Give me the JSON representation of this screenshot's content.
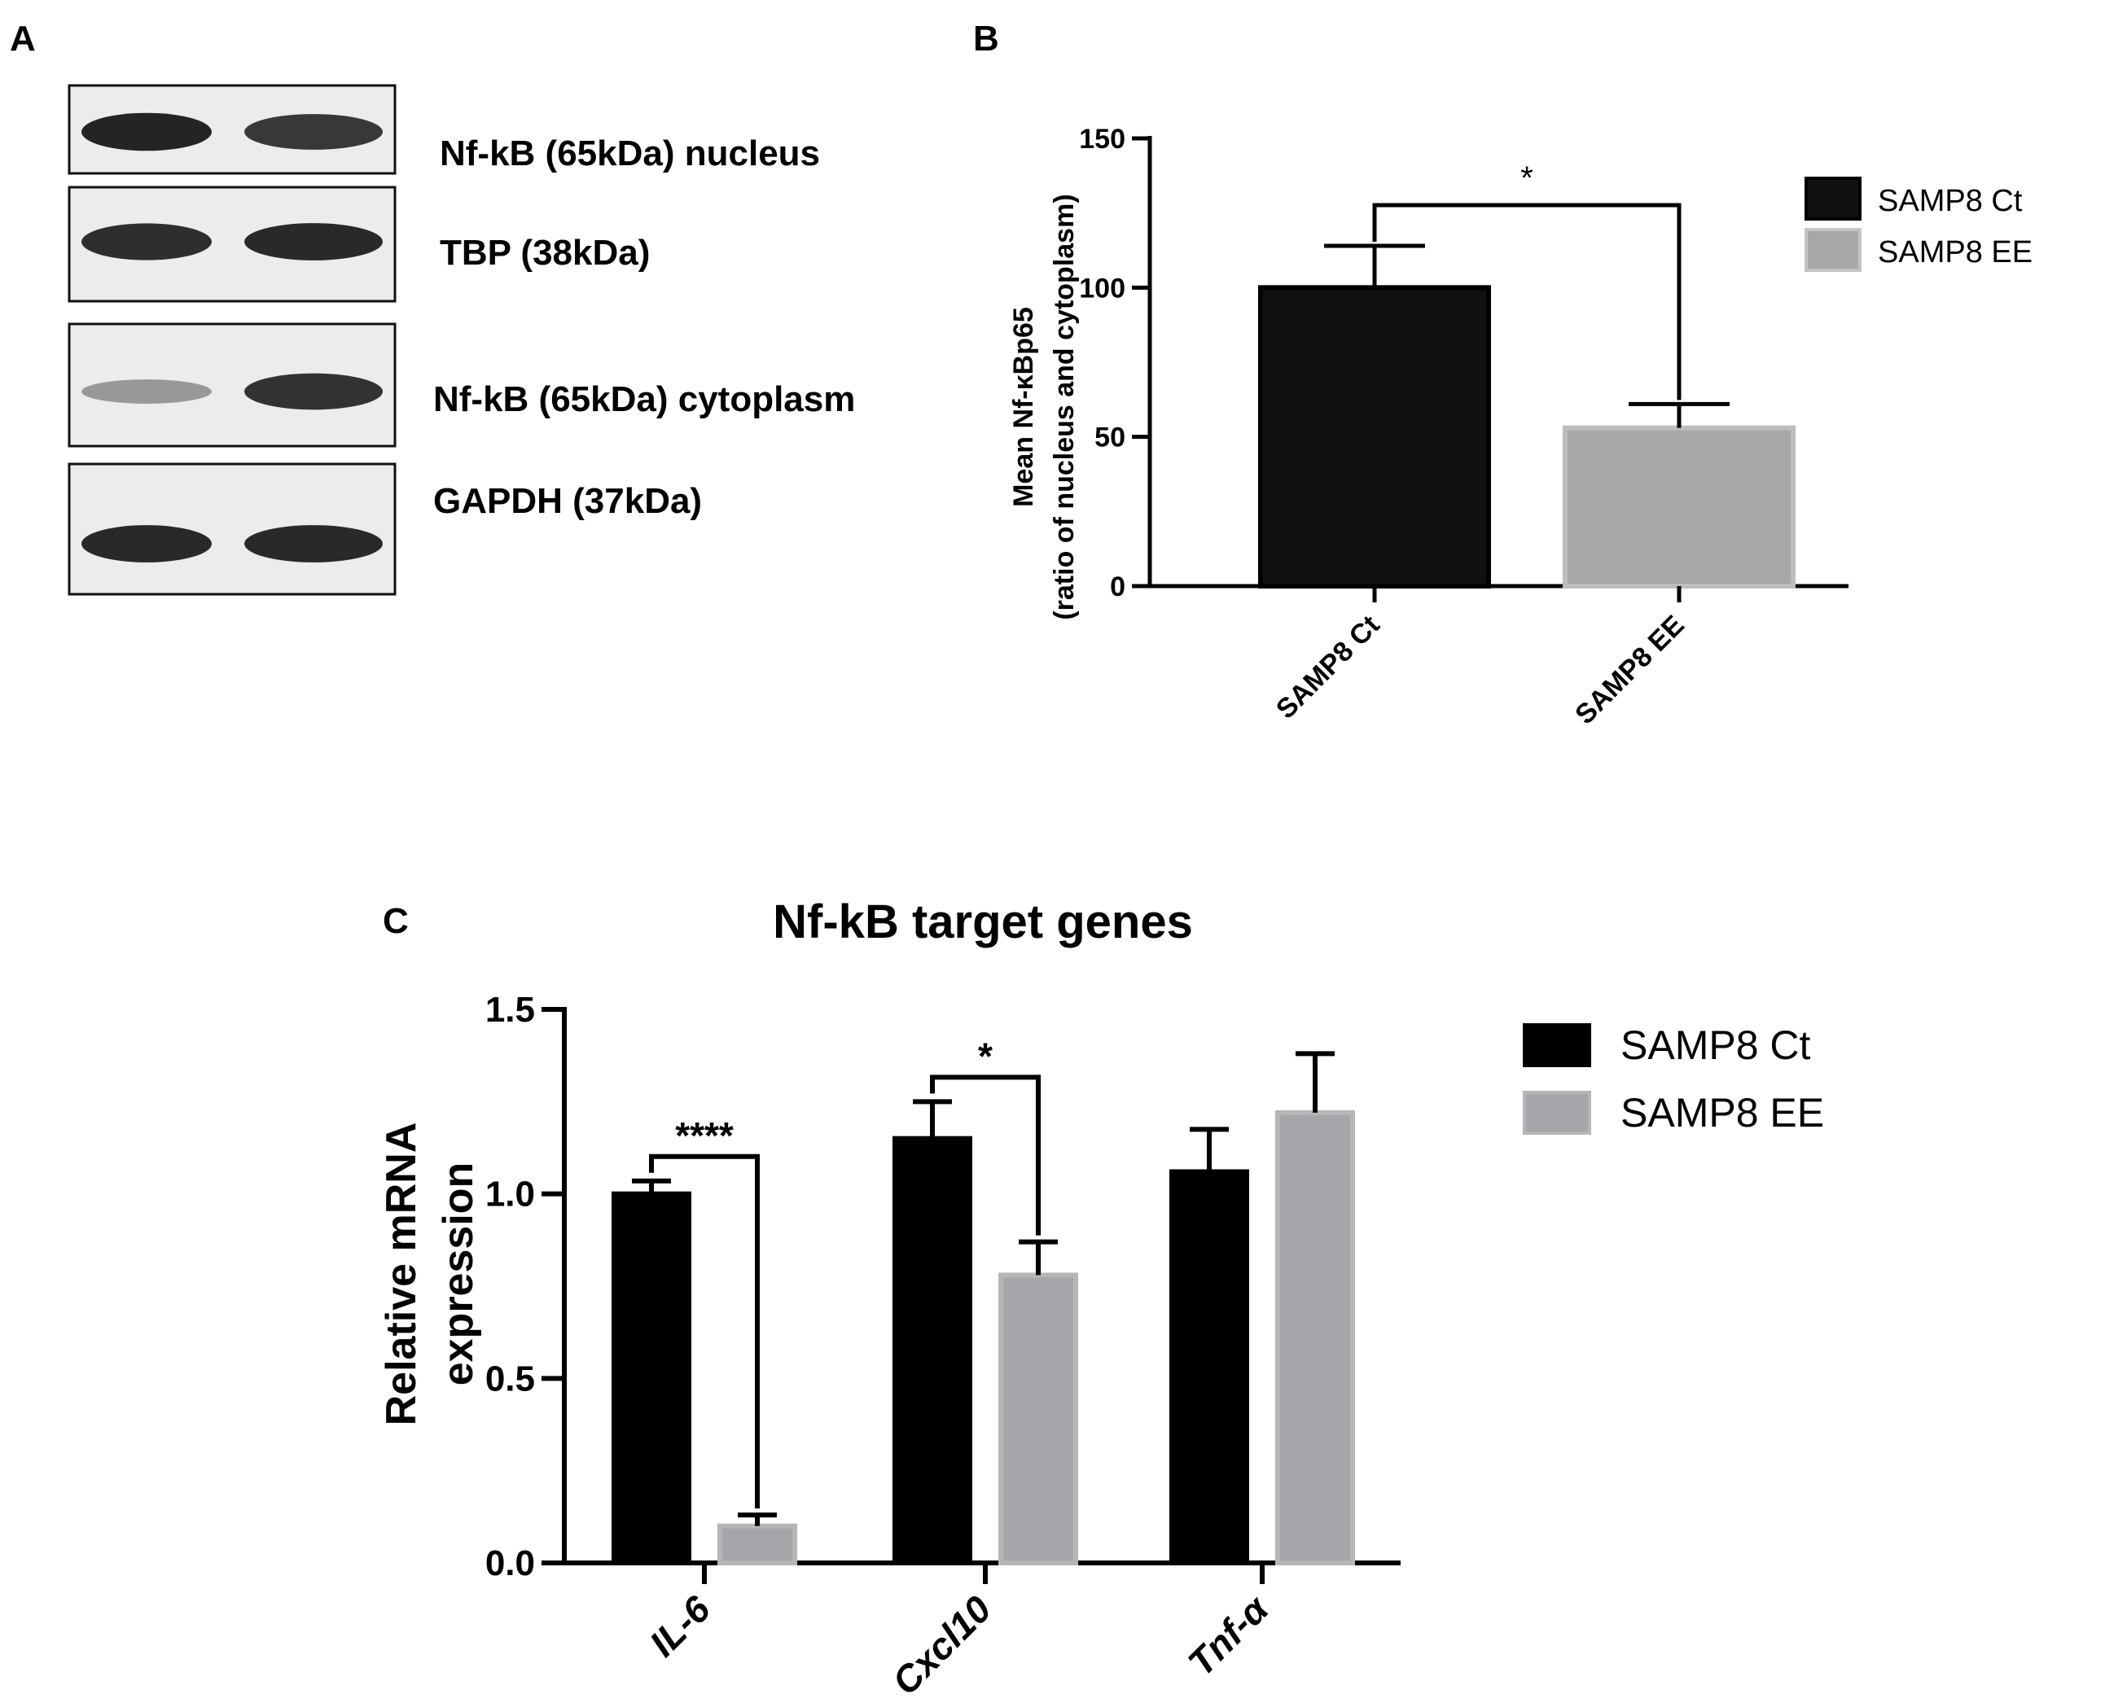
{
  "panel_a": {
    "label": "A",
    "blots": [
      {
        "label": "Nf-kB (65kDa) nucleus",
        "bands": [
          0.95,
          0.85
        ]
      },
      {
        "label": "TBP (38kDa)",
        "bands": [
          0.9,
          0.92
        ]
      },
      {
        "label": "Nf-kB (65kDa) cytoplasm",
        "bands": [
          0.35,
          0.88
        ]
      },
      {
        "label": "GAPDH (37kDa)",
        "bands": [
          0.92,
          0.92
        ]
      }
    ]
  },
  "chart_data": [
    {
      "id": "B",
      "panel_label": "B",
      "type": "bar",
      "title": "",
      "ylabel_line1": "Mean Nf-κBp65",
      "ylabel_line2": "(ratio of nucleus and  cytoplasm)",
      "ylim": [
        0,
        150
      ],
      "yticks": [
        "0",
        "50",
        "100",
        "150"
      ],
      "categories": [
        "SAMP8 Ct",
        "SAMP8 EE"
      ],
      "values": [
        100,
        53
      ],
      "errors": [
        14,
        8
      ],
      "colors": [
        "#111111",
        "#a8a8a8"
      ],
      "significance": [
        {
          "from": 0,
          "to": 1,
          "label": "*"
        }
      ],
      "legend": [
        {
          "label": "SAMP8 Ct",
          "color": "#111111"
        },
        {
          "label": "SAMP8 EE",
          "color": "#a8a8a8"
        }
      ],
      "legend_position": "top-right"
    },
    {
      "id": "C",
      "panel_label": "C",
      "type": "bar",
      "title": "Nf-kB target genes",
      "ylabel_line1": "Relative mRNA",
      "ylabel_line2": "expression",
      "ylim": [
        0,
        1.5
      ],
      "yticks": [
        "0.0",
        "0.5",
        "1.0",
        "1.5"
      ],
      "categories": [
        "IL-6",
        "Cxcl10",
        "Tnf-α"
      ],
      "series": [
        {
          "name": "SAMP8 Ct",
          "color": "#000000",
          "values": [
            1.0,
            1.15,
            1.06
          ],
          "errors": [
            0.035,
            0.1,
            0.115
          ]
        },
        {
          "name": "SAMP8 EE",
          "color": "#a6a6aa",
          "values": [
            0.1,
            0.78,
            1.22
          ],
          "errors": [
            0.03,
            0.09,
            0.16
          ]
        }
      ],
      "significance": [
        {
          "category": 0,
          "label": "****"
        },
        {
          "category": 1,
          "label": "*"
        }
      ],
      "legend_position": "top-right"
    }
  ]
}
